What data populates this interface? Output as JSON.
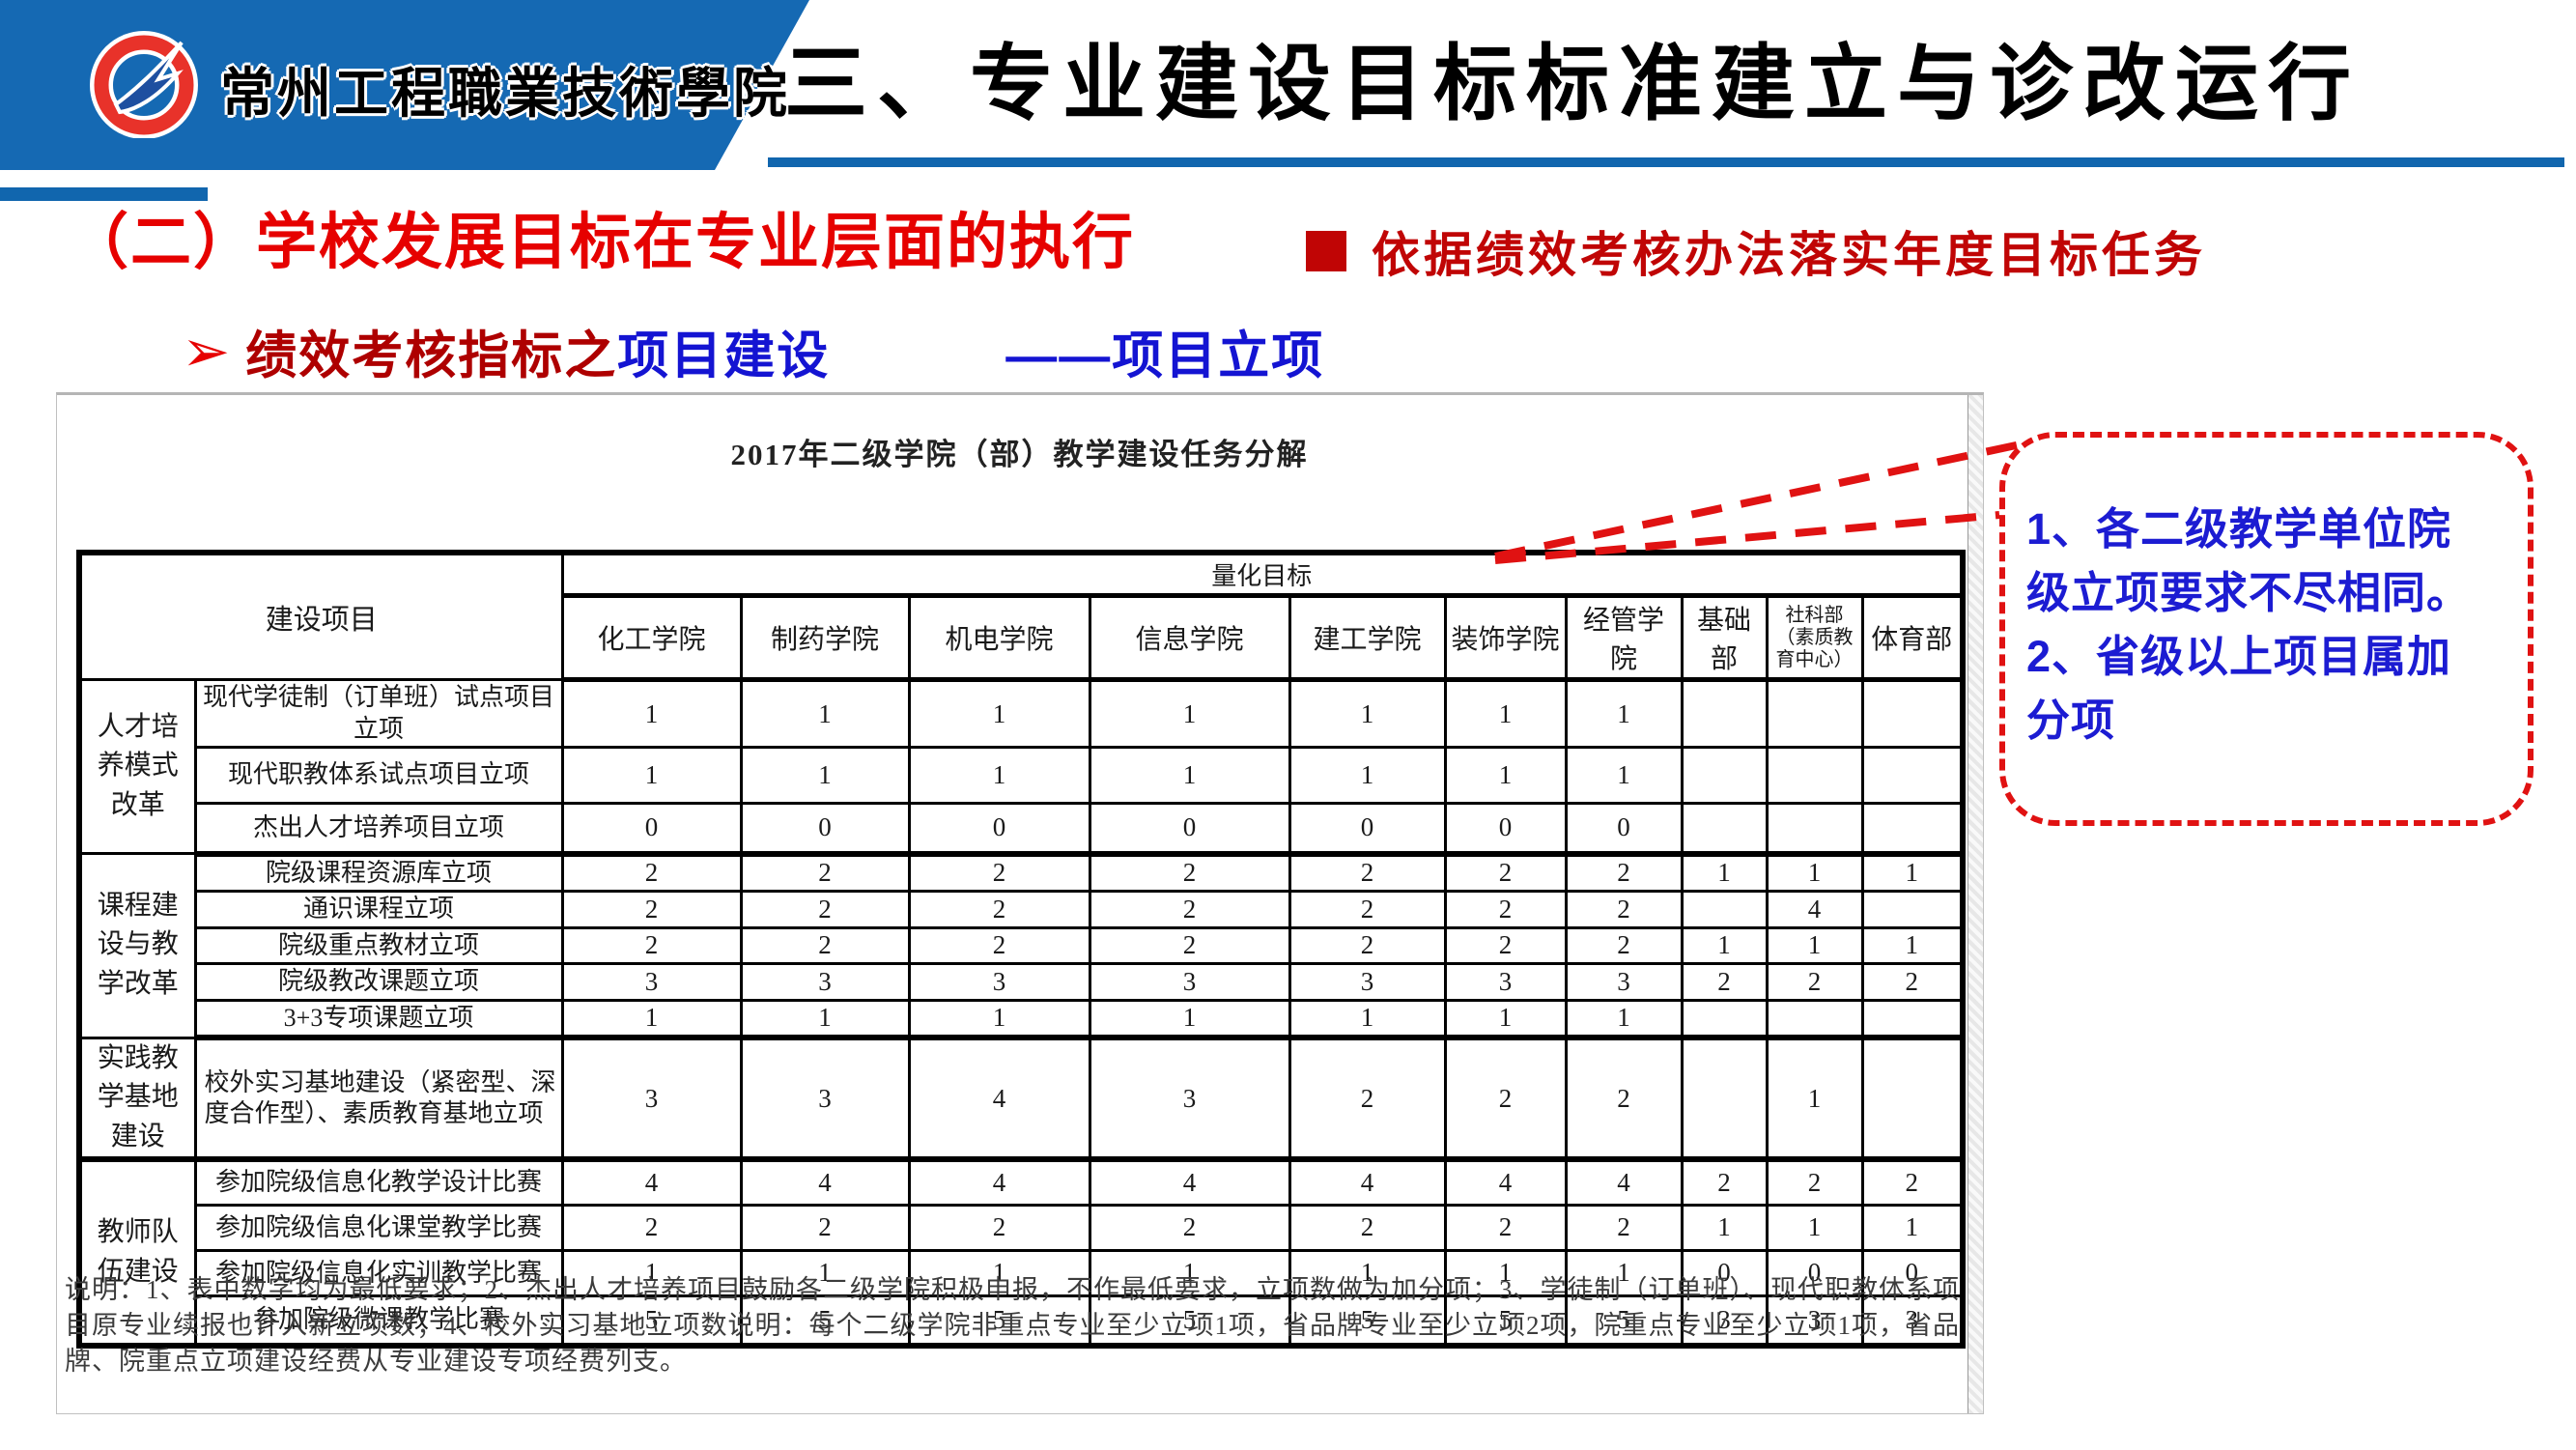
{
  "banner": {
    "school_name": "常州工程職業技術學院",
    "logo": "school-logo"
  },
  "title": {
    "text": "三、专业建设目标标准建立与诊改运行"
  },
  "section": {
    "heading": "（二）学校发展目标在专业层面的执行",
    "bullet_text": "依据绩效考核办法落实年度目标任务"
  },
  "subline": {
    "arrow": "➢",
    "red_part": "绩效考核指标之",
    "blue_part": "项目建设",
    "dash_part": "——项目立项"
  },
  "document": {
    "table_title": "2017年二级学院（部）教学建设任务分解",
    "table": {
      "corner_header": "建设项目",
      "quant_header": "量化目标",
      "columns": [
        "化工学院",
        "制药学院",
        "机电学院",
        "信息学院",
        "建工学院",
        "装饰学院",
        "经管学院",
        "基础部",
        "社科部（素质教育中心）",
        "体育部"
      ],
      "groups": [
        {
          "name": "人才培养模式改革",
          "rows": [
            {
              "label": "现代学徒制（订单班）试点项目立项",
              "values": [
                "1",
                "1",
                "1",
                "1",
                "1",
                "1",
                "1",
                "",
                "",
                ""
              ]
            },
            {
              "label": "现代职教体系试点项目立项",
              "values": [
                "1",
                "1",
                "1",
                "1",
                "1",
                "1",
                "1",
                "",
                "",
                ""
              ]
            },
            {
              "label": "杰出人才培养项目立项",
              "values": [
                "0",
                "0",
                "0",
                "0",
                "0",
                "0",
                "0",
                "",
                "",
                ""
              ]
            }
          ]
        },
        {
          "name": "课程建设与教学改革",
          "rows": [
            {
              "label": "院级课程资源库立项",
              "values": [
                "2",
                "2",
                "2",
                "2",
                "2",
                "2",
                "2",
                "1",
                "1",
                "1"
              ]
            },
            {
              "label": "通识课程立项",
              "values": [
                "2",
                "2",
                "2",
                "2",
                "2",
                "2",
                "2",
                "",
                "4",
                ""
              ]
            },
            {
              "label": "院级重点教材立项",
              "values": [
                "2",
                "2",
                "2",
                "2",
                "2",
                "2",
                "2",
                "1",
                "1",
                "1"
              ]
            },
            {
              "label": "院级教改课题立项",
              "values": [
                "3",
                "3",
                "3",
                "3",
                "3",
                "3",
                "3",
                "2",
                "2",
                "2"
              ]
            },
            {
              "label": "3+3专项课题立项",
              "values": [
                "1",
                "1",
                "1",
                "1",
                "1",
                "1",
                "1",
                "",
                "",
                ""
              ]
            }
          ]
        },
        {
          "name": "实践教学基地建设",
          "rows": [
            {
              "label": "校外实习基地建设（紧密型、深度合作型）、素质教育基地立项",
              "values": [
                "3",
                "3",
                "4",
                "3",
                "2",
                "2",
                "2",
                "",
                "1",
                ""
              ]
            }
          ]
        },
        {
          "name": "教师队伍建设",
          "rows": [
            {
              "label": "参加院级信息化教学设计比赛",
              "values": [
                "4",
                "4",
                "4",
                "4",
                "4",
                "4",
                "4",
                "2",
                "2",
                "2"
              ]
            },
            {
              "label": "参加院级信息化课堂教学比赛",
              "values": [
                "2",
                "2",
                "2",
                "2",
                "2",
                "2",
                "2",
                "1",
                "1",
                "1"
              ]
            },
            {
              "label": "参加院级信息化实训教学比赛",
              "values": [
                "1",
                "1",
                "1",
                "1",
                "1",
                "1",
                "1",
                "0",
                "0",
                "0"
              ]
            },
            {
              "label": "参加院级微课教学比赛",
              "values": [
                "5",
                "5",
                "5",
                "5",
                "5",
                "5",
                "5",
                "3",
                "3",
                "3"
              ]
            }
          ]
        }
      ]
    },
    "footnote": "说明：1、表中数字均为最低要求；2、杰出人才培养项目鼓励各二级学院积极申报，不作最低要求，立项数做为加分项；3、学徒制（订单班）、现代职教体系项目原专业续报也计入新立项数；4、校外实习基地立项数说明：每个二级学院非重点专业至少立项1项，省品牌专业至少立项2项，院重点专业至少立项1项，省品牌、院重点立项建设经费从专业建设专项经费列支。"
  },
  "callout": {
    "lines": [
      "1、各二级教学单位院级立项要求不尽相同。",
      "2、省级以上项目属加分项"
    ]
  },
  "colors": {
    "banner_blue": "#1569b3",
    "underline_blue": "#1166ae",
    "heading_red": "#e60100",
    "bullet_red": "#c00505",
    "subline_red": "#ae0000",
    "subline_blue": "#1414d2",
    "callout_border": "#e01212",
    "callout_text": "#1c1cd2"
  }
}
